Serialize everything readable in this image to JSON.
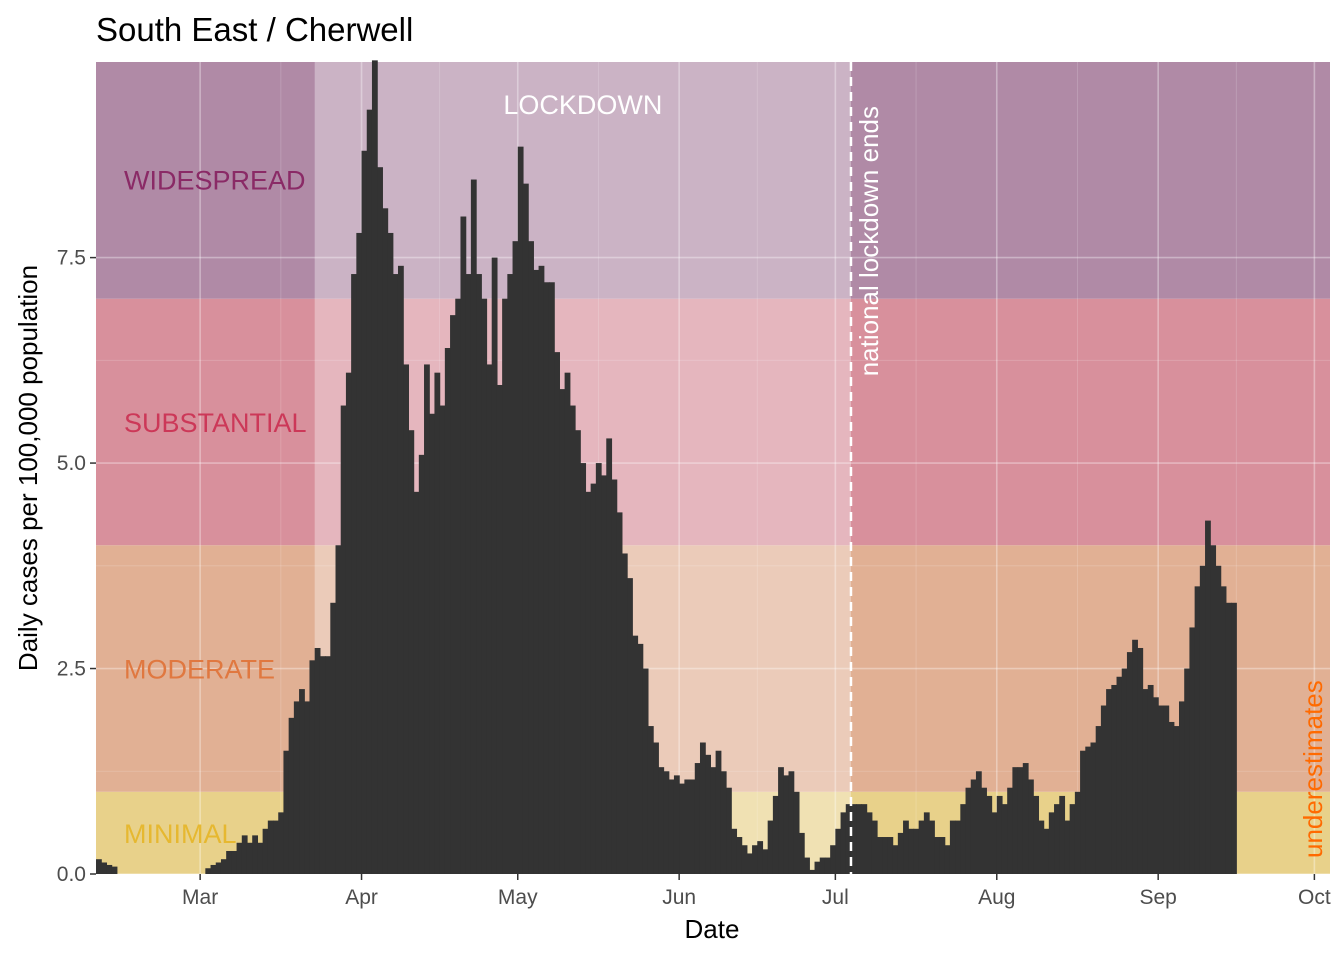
{
  "chart_data": {
    "type": "bar",
    "title": "South East / Cherwell",
    "xlabel": "Date",
    "ylabel": "Daily cases per 100,000 population",
    "x_start": "2020-02-10",
    "xlim": [
      "2020-02-10",
      "2020-10-04"
    ],
    "ylim": [
      0,
      9.88
    ],
    "x_ticks": [
      {
        "date": "2020-03-01",
        "label": "Mar"
      },
      {
        "date": "2020-04-01",
        "label": "Apr"
      },
      {
        "date": "2020-05-01",
        "label": "May"
      },
      {
        "date": "2020-06-01",
        "label": "Jun"
      },
      {
        "date": "2020-07-01",
        "label": "Jul"
      },
      {
        "date": "2020-08-01",
        "label": "Aug"
      },
      {
        "date": "2020-09-01",
        "label": "Sep"
      },
      {
        "date": "2020-10-01",
        "label": "Oct"
      }
    ],
    "y_ticks": [
      {
        "value": 0,
        "label": "0.0"
      },
      {
        "value": 2.5,
        "label": "2.5"
      },
      {
        "value": 5,
        "label": "5.0"
      },
      {
        "value": 7.5,
        "label": "7.5"
      }
    ],
    "grid": true,
    "bands": [
      {
        "label": "MINIMAL",
        "from": 0,
        "to": 1,
        "fill": "#e8d18a",
        "label_color": "#e6b830",
        "label_y": 0.5
      },
      {
        "label": "MODERATE",
        "from": 1,
        "to": 4,
        "fill": "#e1b094",
        "label_color": "#e07840",
        "label_y": 2.5
      },
      {
        "label": "SUBSTANTIAL",
        "from": 4,
        "to": 7,
        "fill": "#d8909c",
        "label_color": "#cc3858",
        "label_y": 5.5
      },
      {
        "label": "WIDESPREAD",
        "from": 7,
        "to": 9.88,
        "fill": "#b08aa6",
        "label_color": "#8a2a66",
        "label_y": 8.45
      }
    ],
    "lockdown": {
      "label": "LOCKDOWN",
      "start": "2020-03-23",
      "end": "2020-07-04",
      "label_color": "#ffffff"
    },
    "vline": {
      "date": "2020-07-04",
      "label": "national lockdown ends",
      "color": "#ffffff"
    },
    "note": {
      "label": "underestimates",
      "color": "#ff6a00"
    },
    "bar_color": "#333333",
    "values": [
      0.18,
      0.14,
      0.11,
      0.09,
      0.0,
      0.0,
      0.0,
      0.0,
      0.0,
      0.0,
      0.0,
      0.0,
      0.0,
      0.0,
      0.0,
      0.0,
      0.0,
      0.0,
      0.0,
      0.0,
      0.0,
      0.07,
      0.11,
      0.14,
      0.18,
      0.28,
      0.28,
      0.38,
      0.47,
      0.38,
      0.47,
      0.38,
      0.55,
      0.65,
      0.65,
      0.75,
      1.5,
      1.9,
      2.1,
      2.25,
      2.1,
      2.6,
      2.75,
      2.65,
      2.65,
      3.3,
      4.0,
      5.7,
      6.1,
      7.3,
      7.8,
      8.8,
      9.3,
      9.9,
      8.6,
      8.1,
      7.8,
      7.3,
      7.4,
      6.2,
      5.4,
      4.65,
      5.1,
      6.2,
      5.6,
      6.1,
      5.7,
      6.4,
      6.8,
      7.0,
      8.0,
      7.3,
      8.45,
      7.3,
      7.0,
      6.2,
      7.5,
      5.95,
      7.0,
      7.3,
      7.7,
      8.85,
      8.4,
      7.7,
      7.35,
      7.4,
      7.2,
      7.2,
      6.35,
      5.9,
      6.1,
      5.7,
      5.4,
      5.0,
      4.65,
      4.75,
      5.0,
      4.85,
      5.3,
      4.8,
      4.4,
      3.9,
      3.6,
      2.9,
      2.8,
      2.5,
      1.8,
      1.6,
      1.3,
      1.25,
      1.15,
      1.2,
      1.1,
      1.15,
      1.15,
      1.35,
      1.6,
      1.45,
      1.3,
      1.5,
      1.25,
      1.05,
      0.55,
      0.45,
      0.35,
      0.25,
      0.35,
      0.4,
      0.3,
      0.65,
      0.95,
      1.3,
      1.2,
      1.25,
      1.0,
      0.5,
      0.2,
      0.05,
      0.15,
      0.2,
      0.2,
      0.35,
      0.55,
      0.75,
      0.85,
      0.85,
      0.85,
      0.85,
      0.75,
      0.65,
      0.45,
      0.45,
      0.45,
      0.35,
      0.5,
      0.65,
      0.55,
      0.55,
      0.65,
      0.75,
      0.65,
      0.45,
      0.45,
      0.35,
      0.65,
      0.65,
      0.85,
      1.05,
      1.15,
      1.25,
      1.05,
      0.95,
      0.75,
      0.95,
      0.85,
      1.05,
      1.3,
      1.3,
      1.35,
      1.15,
      0.95,
      0.65,
      0.55,
      0.75,
      0.85,
      0.95,
      0.65,
      0.85,
      1.0,
      1.5,
      1.55,
      1.6,
      1.8,
      2.05,
      2.25,
      2.3,
      2.4,
      2.5,
      2.7,
      2.85,
      2.75,
      2.25,
      2.3,
      2.15,
      2.05,
      2.05,
      1.85,
      1.8,
      2.1,
      2.5,
      3.0,
      3.5,
      3.75,
      4.3,
      4.0,
      3.75,
      3.5,
      3.3,
      3.3
    ]
  }
}
